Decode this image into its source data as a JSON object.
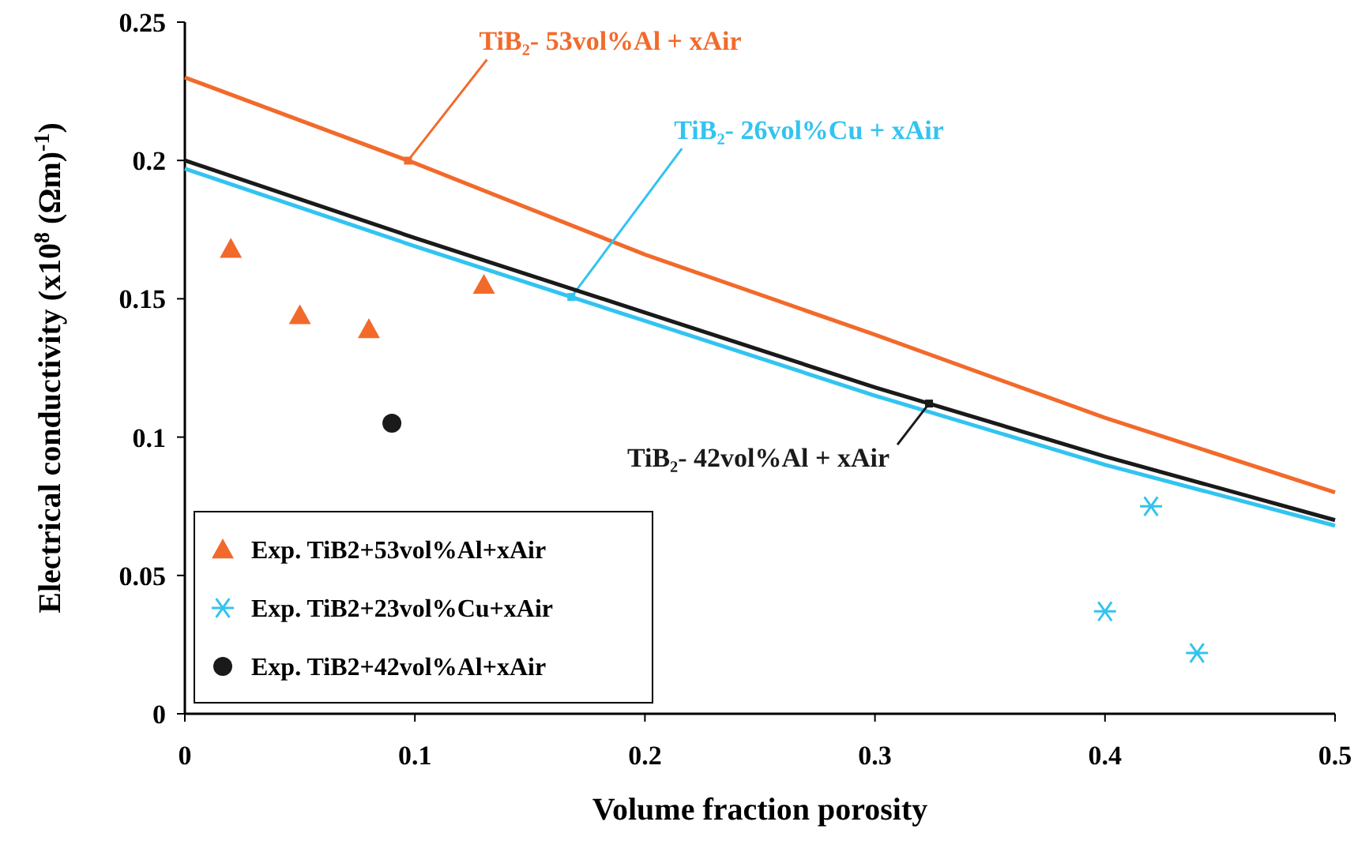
{
  "chart_data": {
    "type": "line",
    "xlabel": "Volume fraction porosity",
    "ylabel": "Electrical conductivity (x10$^{8}$ (Ωm)$^{-1}$)",
    "xlim": [
      0,
      0.5
    ],
    "ylim": [
      0,
      0.25
    ],
    "xticks": [
      0,
      0.1,
      0.2,
      0.3,
      0.4,
      0.5
    ],
    "yticks": [
      0,
      0.05,
      0.1,
      0.15,
      0.2,
      0.25
    ],
    "grid": false,
    "legend": "bottom left",
    "series": [
      {
        "name": "TiB₂- 53vol%Al + xAir",
        "type": "line",
        "color": "#f26a2b",
        "marker": "none",
        "x": [
          0,
          0.1,
          0.2,
          0.3,
          0.4,
          0.5
        ],
        "values": [
          0.23,
          0.199,
          0.166,
          0.137,
          0.107,
          0.08
        ]
      },
      {
        "name": "TiB₂- 26vol%Cu + xAir",
        "type": "line",
        "color": "#33c3f0",
        "marker": "none",
        "x": [
          0,
          0.1,
          0.2,
          0.3,
          0.4,
          0.5
        ],
        "values": [
          0.197,
          0.169,
          0.142,
          0.115,
          0.09,
          0.068
        ]
      },
      {
        "name": "TiB₂- 42vol%Al + xAir",
        "color": "#1a1a1a",
        "marker": "none",
        "x": [
          0,
          0.1,
          0.2,
          0.3,
          0.4,
          0.5
        ],
        "values": [
          0.2,
          0.172,
          0.145,
          0.118,
          0.093,
          0.07
        ]
      },
      {
        "name": "Exp. TiB2+53vol%Al+xAir",
        "type": "scatter",
        "color": "#f26a2b",
        "marker": "triangle",
        "x": [
          0.02,
          0.05,
          0.08,
          0.13
        ],
        "values": [
          0.168,
          0.144,
          0.139,
          0.155
        ]
      },
      {
        "name": "Exp. TiB2+23vol%Cu+xAir",
        "type": "scatter",
        "color": "#33c3f0",
        "marker": "cross",
        "x": [
          0.4,
          0.42,
          0.44
        ],
        "values": [
          0.037,
          0.075,
          0.022
        ]
      },
      {
        "name": "Exp. TiB2+42vol%Al+xAir",
        "type": "scatter",
        "color": "#1a1a1a",
        "marker": "circle",
        "x": [
          0.09
        ],
        "values": [
          0.105
        ]
      }
    ]
  }
}
